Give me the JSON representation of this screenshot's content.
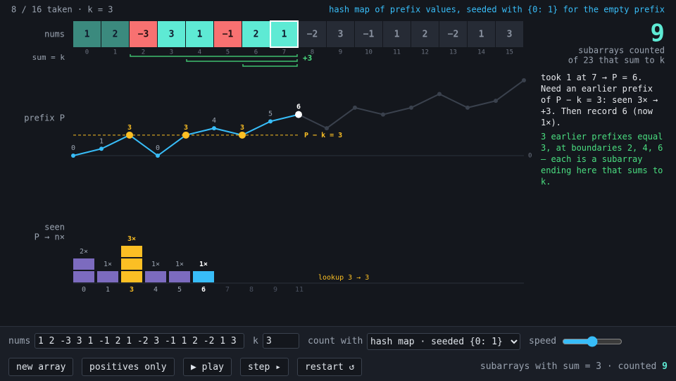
{
  "header": {
    "status": "8 / 16 taken · k = 3",
    "mode": "hash map of prefix values, seeded with {0: 1} for the empty prefix"
  },
  "nums": {
    "label": "nums",
    "sum_label": "sum = k",
    "cells": [
      {
        "text": "1",
        "index": 0,
        "state": "done"
      },
      {
        "text": "2",
        "index": 1,
        "state": "done"
      },
      {
        "text": "−3",
        "index": 2,
        "state": "neg"
      },
      {
        "text": "3",
        "index": 3,
        "state": "pos"
      },
      {
        "text": "1",
        "index": 4,
        "state": "pos"
      },
      {
        "text": "−1",
        "index": 5,
        "state": "neg"
      },
      {
        "text": "2",
        "index": 6,
        "state": "pos"
      },
      {
        "text": "1",
        "index": 7,
        "state": "current"
      },
      {
        "text": "−2",
        "index": 8,
        "state": "pending"
      },
      {
        "text": "3",
        "index": 9,
        "state": "pending"
      },
      {
        "text": "−1",
        "index": 10,
        "state": "pending"
      },
      {
        "text": "1",
        "index": 11,
        "state": "pending"
      },
      {
        "text": "2",
        "index": 12,
        "state": "pending"
      },
      {
        "text": "−2",
        "index": 13,
        "state": "pending"
      },
      {
        "text": "1",
        "index": 14,
        "state": "pending"
      },
      {
        "text": "3",
        "index": 15,
        "state": "pending"
      }
    ],
    "brackets": [
      2,
      4,
      6
    ],
    "gain": "+3"
  },
  "counter": {
    "value": 9,
    "line1": "subarrays counted",
    "line2": "of 23 that sum to k"
  },
  "prefix": {
    "label": "prefix P",
    "ylim": [
      0,
      11
    ],
    "yticks": [
      0
    ],
    "taken": [
      0,
      1,
      3,
      0,
      3,
      4,
      3,
      5,
      6,
      null,
      null,
      null,
      null,
      null,
      null,
      null,
      null
    ],
    "future": [
      null,
      null,
      null,
      null,
      null,
      null,
      null,
      null,
      6,
      4,
      7,
      6,
      7,
      9,
      7,
      8,
      11
    ],
    "target": 3,
    "target_label": "P − k = 3"
  },
  "explain": {
    "step": "took 1 at 7 → P = 6. Need an earlier prefix of P − k = 3: seen 3× → +3. Then record 6 (now 1×).",
    "result": "3 earlier prefixes equal 3, at boundaries 2, 4, 6 — each is a subarray ending here that sums to k."
  },
  "seen": {
    "label_1": "seen",
    "label_2": "P → n×",
    "keys": [
      0,
      1,
      3,
      4,
      5,
      6,
      7,
      8,
      9,
      11
    ],
    "counts": [
      2,
      1,
      3,
      1,
      1,
      1,
      0,
      0,
      0,
      0
    ],
    "count_labels": [
      "2×",
      "1×",
      "3×",
      "1×",
      "1×",
      "1×",
      null,
      null,
      null,
      null
    ],
    "lookup": "lookup 3 → 3"
  },
  "controls": {
    "nums_label": "nums",
    "nums_input": "1 2 -3 3 1 -1 2 1 -2 3 -1 1 2 -2 1 3",
    "k_label": "k",
    "k_input": "3",
    "count_label": "count with",
    "method": "hash map · seeded {0: 1}",
    "speed_label": "speed",
    "buttons": [
      "new array",
      "positives only",
      "▶ play",
      "step ▸",
      "restart ↺"
    ],
    "summary": "subarrays with sum = 3 · counted",
    "summary_count": 9
  }
}
